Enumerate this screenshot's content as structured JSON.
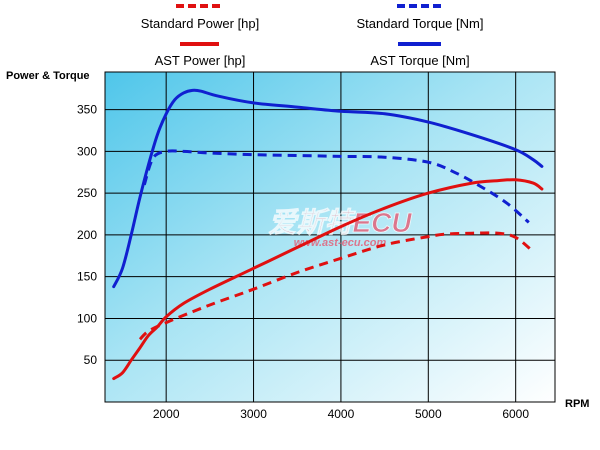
{
  "chart_data": {
    "type": "line",
    "title": "",
    "xlabel": "RPM",
    "ylabel": "Power & Torque",
    "xlim": [
      1300,
      6450
    ],
    "ylim": [
      0,
      395
    ],
    "x_ticks": [
      2000,
      3000,
      4000,
      5000,
      6000
    ],
    "x_tick_labels": [
      "2000",
      "3000",
      "4000",
      "5000",
      "6000"
    ],
    "y_ticks": [
      50,
      100,
      150,
      200,
      250,
      300,
      350
    ],
    "y_tick_labels": [
      "50",
      "100",
      "150",
      "200",
      "250",
      "300",
      "350"
    ],
    "grid": true,
    "legend_placement": "top",
    "watermark_text": "爱斯特ECU",
    "watermark_url": "www.ast-ecu.com",
    "series": [
      {
        "name": "Standard Power [hp]",
        "color": "#e01010",
        "dashed": true,
        "x": [
          1700,
          1800,
          2000,
          2300,
          2600,
          3000,
          3500,
          4000,
          4500,
          5000,
          5200,
          5500,
          5800,
          6000,
          6200
        ],
        "y": [
          75,
          85,
          95,
          108,
          120,
          135,
          155,
          172,
          188,
          198,
          201,
          202,
          202,
          197,
          180
        ]
      },
      {
        "name": "Standard Torque [Nm]",
        "color": "#1020d0",
        "dashed": true,
        "x": [
          1750,
          1850,
          2000,
          2200,
          2500,
          3000,
          3500,
          4000,
          4500,
          5000,
          5300,
          5600,
          5900,
          6150
        ],
        "y": [
          260,
          292,
          300,
          300,
          298,
          296,
          295,
          294,
          293,
          287,
          275,
          258,
          238,
          215
        ]
      },
      {
        "name": "AST Power [hp]",
        "color": "#e01010",
        "dashed": false,
        "x": [
          1400,
          1500,
          1600,
          1700,
          1800,
          1900,
          2000,
          2200,
          2500,
          3000,
          3500,
          4000,
          4500,
          5000,
          5500,
          5800,
          6000,
          6200,
          6300
        ],
        "y": [
          28,
          35,
          50,
          65,
          80,
          90,
          102,
          118,
          135,
          160,
          185,
          210,
          232,
          250,
          262,
          265,
          266,
          262,
          255
        ]
      },
      {
        "name": "AST Torque [Nm]",
        "color": "#1020d0",
        "dashed": false,
        "x": [
          1400,
          1500,
          1600,
          1700,
          1800,
          1900,
          2000,
          2100,
          2200,
          2300,
          2400,
          2600,
          3000,
          3500,
          4000,
          4500,
          5000,
          5500,
          6000,
          6200,
          6300
        ],
        "y": [
          138,
          160,
          200,
          245,
          285,
          320,
          345,
          362,
          370,
          373,
          372,
          366,
          358,
          353,
          348,
          345,
          335,
          320,
          302,
          290,
          282
        ]
      }
    ]
  }
}
